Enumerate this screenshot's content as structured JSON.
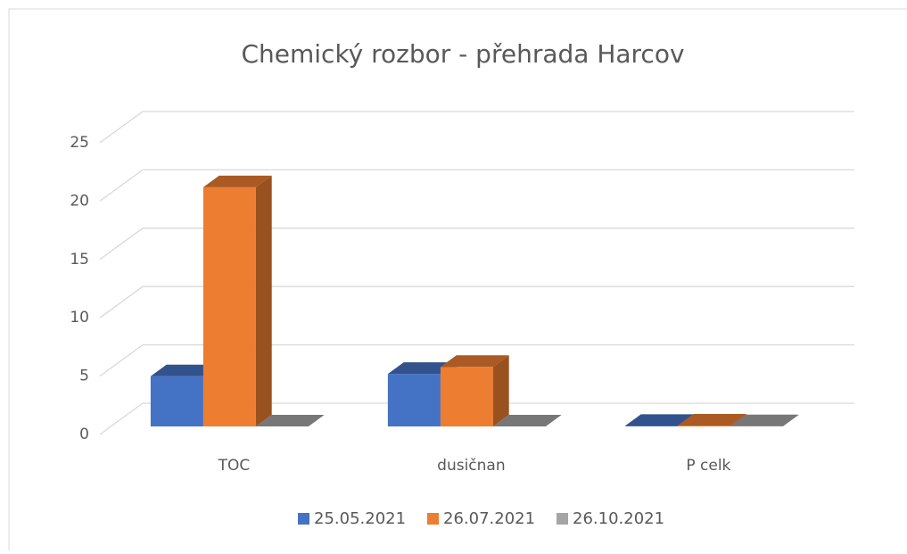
{
  "chart_data": {
    "type": "bar3d",
    "title": "Chemický rozbor - přehrada Harcov",
    "categories": [
      "TOC",
      "dusičnan",
      "P celk"
    ],
    "series": [
      {
        "name": "25.05.2021",
        "color": "#4472c4",
        "values": [
          4.3,
          4.5,
          0.05
        ]
      },
      {
        "name": "26.07.2021",
        "color": "#ed7d31",
        "values": [
          20.5,
          5.1,
          0.08
        ]
      },
      {
        "name": "26.10.2021",
        "color": "#a5a5a5",
        "values": [
          0,
          0,
          0.02
        ]
      }
    ],
    "ylim": [
      0,
      25
    ],
    "yticks": [
      0,
      5,
      10,
      15,
      20,
      25
    ],
    "grid": true,
    "legend": "bottom"
  }
}
